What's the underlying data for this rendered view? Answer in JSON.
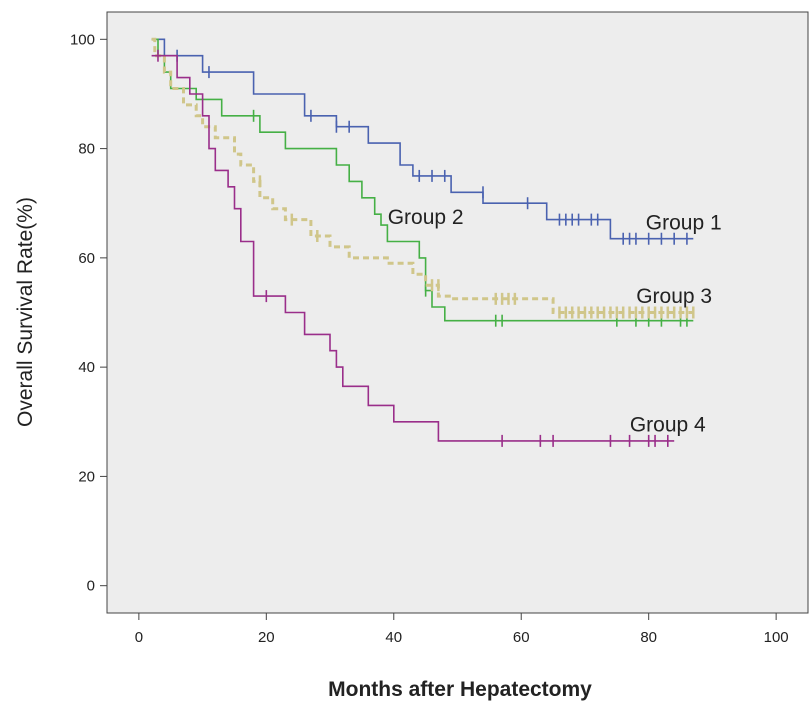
{
  "chart_data": {
    "type": "line",
    "step": true,
    "xlabel": "Months after Hepatectomy",
    "ylabel": "Overall Survival Rate(%)",
    "xlim": [
      -5,
      105
    ],
    "ylim": [
      -5,
      105
    ],
    "xticks": [
      "0",
      "20",
      "40",
      "60",
      "80",
      "100"
    ],
    "xtick_values": [
      0,
      20,
      40,
      60,
      80,
      100
    ],
    "yticks": [
      "0",
      "20",
      "40",
      "60",
      "80",
      "100"
    ],
    "ytick_values": [
      0,
      20,
      40,
      60,
      80,
      100
    ],
    "grid": false,
    "plot_background": "#ededed",
    "series": [
      {
        "name": "Group 1",
        "color": "#4a62b0",
        "dash": "",
        "points": [
          [
            2,
            100
          ],
          [
            4,
            100
          ],
          [
            4,
            97
          ],
          [
            10,
            97
          ],
          [
            10,
            94
          ],
          [
            18,
            94
          ],
          [
            18,
            90
          ],
          [
            26,
            90
          ],
          [
            26,
            86
          ],
          [
            31,
            86
          ],
          [
            31,
            84
          ],
          [
            36,
            84
          ],
          [
            36,
            81
          ],
          [
            41,
            81
          ],
          [
            41,
            77
          ],
          [
            43,
            77
          ],
          [
            43,
            75
          ],
          [
            49,
            75
          ],
          [
            49,
            72
          ],
          [
            54,
            72
          ],
          [
            54,
            70
          ],
          [
            64,
            70
          ],
          [
            64,
            67
          ],
          [
            74,
            67
          ],
          [
            74,
            63.5
          ],
          [
            87,
            63.5
          ]
        ],
        "censor": [
          [
            6,
            97
          ],
          [
            11,
            94
          ],
          [
            27,
            86
          ],
          [
            31,
            84
          ],
          [
            33,
            84
          ],
          [
            44,
            75
          ],
          [
            46,
            75
          ],
          [
            48,
            75
          ],
          [
            54,
            72
          ],
          [
            61,
            70
          ],
          [
            66,
            67
          ],
          [
            67,
            67
          ],
          [
            68,
            67
          ],
          [
            69,
            67
          ],
          [
            71,
            67
          ],
          [
            72,
            67
          ],
          [
            76,
            63.5
          ],
          [
            77,
            63.5
          ],
          [
            78,
            63.5
          ],
          [
            80,
            63.5
          ],
          [
            82,
            63.5
          ],
          [
            84,
            63.5
          ],
          [
            86,
            63.5
          ]
        ]
      },
      {
        "name": "Group 2",
        "color": "#45b045",
        "dash": "",
        "points": [
          [
            2,
            100
          ],
          [
            3,
            100
          ],
          [
            3,
            97
          ],
          [
            4,
            97
          ],
          [
            4,
            94
          ],
          [
            5,
            94
          ],
          [
            5,
            91
          ],
          [
            9,
            91
          ],
          [
            9,
            89
          ],
          [
            13,
            89
          ],
          [
            13,
            86
          ],
          [
            19,
            86
          ],
          [
            19,
            83
          ],
          [
            23,
            83
          ],
          [
            23,
            80
          ],
          [
            31,
            80
          ],
          [
            31,
            77
          ],
          [
            33,
            77
          ],
          [
            33,
            74
          ],
          [
            35,
            74
          ],
          [
            35,
            71
          ],
          [
            37,
            71
          ],
          [
            37,
            68
          ],
          [
            38,
            68
          ],
          [
            38,
            66
          ],
          [
            39,
            66
          ],
          [
            39,
            63
          ],
          [
            44,
            63
          ],
          [
            44,
            60
          ],
          [
            45,
            60
          ],
          [
            45,
            54
          ],
          [
            46,
            54
          ],
          [
            46,
            51
          ],
          [
            48,
            51
          ],
          [
            48,
            48.5
          ],
          [
            87,
            48.5
          ]
        ],
        "censor": [
          [
            18,
            86
          ],
          [
            45,
            54
          ],
          [
            56,
            48.5
          ],
          [
            57,
            48.5
          ],
          [
            75,
            48.5
          ],
          [
            78,
            48.5
          ],
          [
            80,
            48.5
          ],
          [
            82,
            48.5
          ],
          [
            85,
            48.5
          ],
          [
            86,
            48.5
          ]
        ]
      },
      {
        "name": "Group 3",
        "color": "#d0c68a",
        "dash": "6,4",
        "points": [
          [
            2,
            100
          ],
          [
            2.5,
            100
          ],
          [
            2.5,
            97
          ],
          [
            4,
            97
          ],
          [
            4,
            94
          ],
          [
            5,
            94
          ],
          [
            5,
            91
          ],
          [
            7,
            91
          ],
          [
            7,
            88
          ],
          [
            9,
            88
          ],
          [
            9,
            86
          ],
          [
            10,
            86
          ],
          [
            10,
            84
          ],
          [
            12,
            84
          ],
          [
            12,
            82
          ],
          [
            15,
            82
          ],
          [
            15,
            79
          ],
          [
            16,
            79
          ],
          [
            16,
            77
          ],
          [
            18,
            77
          ],
          [
            18,
            74
          ],
          [
            19,
            74
          ],
          [
            19,
            71
          ],
          [
            21,
            71
          ],
          [
            21,
            69
          ],
          [
            23,
            69
          ],
          [
            23,
            67
          ],
          [
            27,
            67
          ],
          [
            27,
            64
          ],
          [
            30,
            64
          ],
          [
            30,
            62
          ],
          [
            33,
            62
          ],
          [
            33,
            60
          ],
          [
            39,
            60
          ],
          [
            39,
            59
          ],
          [
            43,
            59
          ],
          [
            43,
            57
          ],
          [
            45,
            57
          ],
          [
            45,
            55
          ],
          [
            47,
            55
          ],
          [
            47,
            53
          ],
          [
            49,
            53
          ],
          [
            49,
            52.5
          ],
          [
            65,
            52.5
          ],
          [
            65,
            50
          ],
          [
            87,
            50
          ]
        ],
        "censor": [
          [
            19,
            74
          ],
          [
            24,
            67
          ],
          [
            28,
            64
          ],
          [
            46,
            55
          ],
          [
            47,
            55
          ],
          [
            56,
            52.5
          ],
          [
            57,
            52.5
          ],
          [
            58,
            52.5
          ],
          [
            59,
            52.5
          ],
          [
            66,
            50
          ],
          [
            67,
            50
          ],
          [
            68,
            50
          ],
          [
            69,
            50
          ],
          [
            70,
            50
          ],
          [
            71,
            50
          ],
          [
            72,
            50
          ],
          [
            73,
            50
          ],
          [
            74,
            50
          ],
          [
            75,
            50
          ],
          [
            76,
            50
          ],
          [
            77,
            50
          ],
          [
            78,
            50
          ],
          [
            79,
            50
          ],
          [
            80,
            50
          ],
          [
            81,
            50
          ],
          [
            82,
            50
          ],
          [
            83,
            50
          ],
          [
            84,
            50
          ],
          [
            85,
            50
          ],
          [
            86,
            50
          ],
          [
            87,
            50
          ]
        ]
      },
      {
        "name": "Group 4",
        "color": "#9a2e8a",
        "dash": "",
        "points": [
          [
            2,
            97
          ],
          [
            6,
            97
          ],
          [
            6,
            93
          ],
          [
            8,
            93
          ],
          [
            8,
            90
          ],
          [
            10,
            90
          ],
          [
            10,
            86
          ],
          [
            11,
            86
          ],
          [
            11,
            80
          ],
          [
            12,
            80
          ],
          [
            12,
            76
          ],
          [
            14,
            76
          ],
          [
            14,
            73
          ],
          [
            15,
            73
          ],
          [
            15,
            69
          ],
          [
            16,
            69
          ],
          [
            16,
            63
          ],
          [
            18,
            63
          ],
          [
            18,
            53
          ],
          [
            23,
            53
          ],
          [
            23,
            50
          ],
          [
            26,
            50
          ],
          [
            26,
            46
          ],
          [
            30,
            46
          ],
          [
            30,
            43
          ],
          [
            31,
            43
          ],
          [
            31,
            40
          ],
          [
            32,
            40
          ],
          [
            32,
            36.5
          ],
          [
            36,
            36.5
          ],
          [
            36,
            33
          ],
          [
            40,
            33
          ],
          [
            40,
            30
          ],
          [
            47,
            30
          ],
          [
            47,
            26.5
          ],
          [
            84,
            26.5
          ]
        ],
        "censor": [
          [
            3,
            97
          ],
          [
            20,
            53
          ],
          [
            57,
            26.5
          ],
          [
            63,
            26.5
          ],
          [
            65,
            26.5
          ],
          [
            74,
            26.5
          ],
          [
            77,
            26.5
          ],
          [
            80,
            26.5
          ],
          [
            81,
            26.5
          ],
          [
            83,
            26.5
          ]
        ]
      }
    ],
    "annotations": [
      {
        "id": "g1",
        "text": "Group 1",
        "x": 85.5,
        "y": 66.5
      },
      {
        "id": "g2",
        "text": "Group 2",
        "x": 45,
        "y": 67.5
      },
      {
        "id": "g3",
        "text": "Group 3",
        "x": 84,
        "y": 53
      },
      {
        "id": "g4",
        "text": "Group 4",
        "x": 83,
        "y": 29.5
      }
    ]
  }
}
